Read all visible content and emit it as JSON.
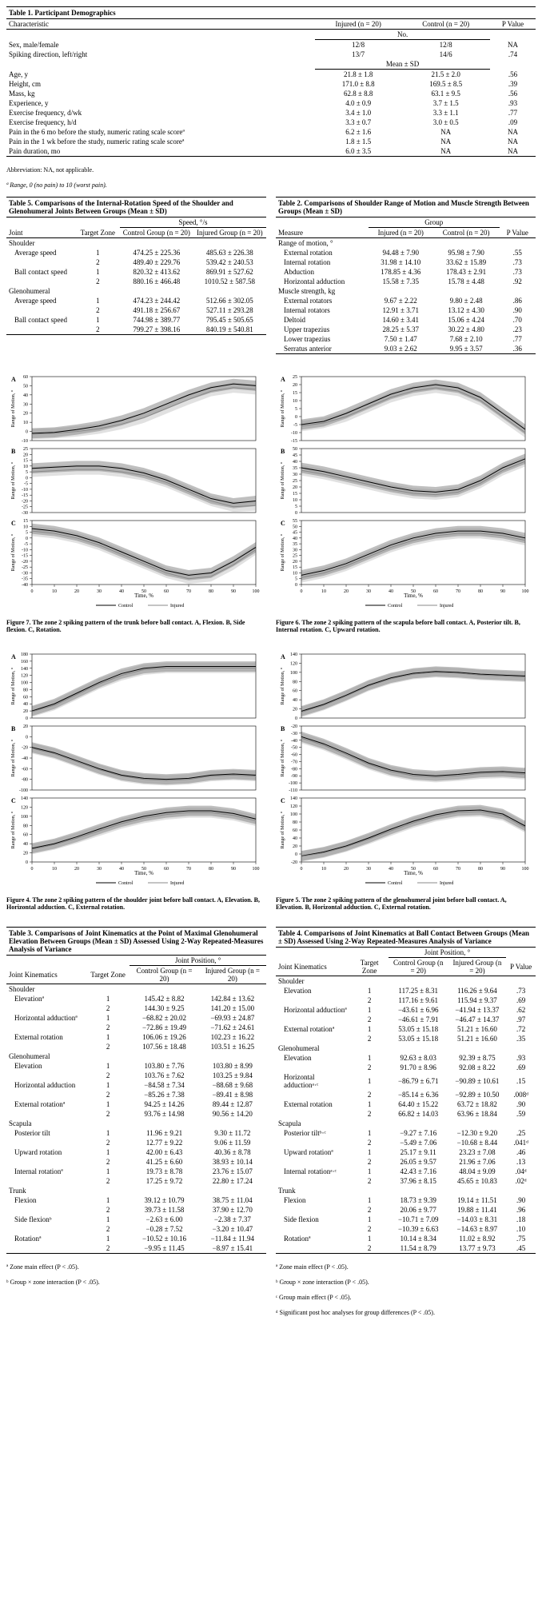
{
  "table1": {
    "title": "Table 1.   Participant Demographics",
    "cols": [
      "Characteristic",
      "Injured (n = 20)",
      "Control (n = 20)",
      "P Value"
    ],
    "sub1": "No.",
    "rows1": [
      [
        "Sex, male/female",
        "12/8",
        "12/8",
        "NA"
      ],
      [
        "Spiking direction, left/right",
        "13/7",
        "14/6",
        ".74"
      ]
    ],
    "sub2": "Mean ± SD",
    "rows2": [
      [
        "Age, y",
        "21.8 ± 1.8",
        "21.5 ± 2.0",
        ".56"
      ],
      [
        "Height, cm",
        "171.0 ± 8.8",
        "169.5 ± 8.5",
        ".39"
      ],
      [
        "Mass, kg",
        "62.8 ± 8.8",
        "63.1 ± 9.5",
        ".56"
      ],
      [
        "Experience, y",
        "4.0 ± 0.9",
        "3.7 ± 1.5",
        ".93"
      ],
      [
        "Exercise frequency, d/wk",
        "3.4 ± 1.0",
        "3.3 ± 1.1",
        ".77"
      ],
      [
        "Exercise frequency, h/d",
        "3.3 ± 0.7",
        "3.0 ± 0.5",
        ".09"
      ],
      [
        "Pain in the 6 mo before the study, numeric rating scale scoreª",
        "6.2 ± 1.6",
        "NA",
        "NA"
      ],
      [
        "Pain in the 1 wk before the study, numeric rating scale scoreª",
        "1.8 ± 1.5",
        "NA",
        "NA"
      ],
      [
        "Pain duration, mo",
        "6.0 ± 3.5",
        "NA",
        "NA"
      ]
    ],
    "abbr": "Abbreviation: NA, not applicable.",
    "foot": "ª Range, 0 (no pain) to 10 (worst pain)."
  },
  "table5": {
    "title": "Table 5.   Comparisons of the Internal-Rotation Speed of the Shoulder and Glenohumeral Joints Between Groups (Mean ± SD)",
    "spanhdr": "Speed, °/s",
    "cols": [
      "Joint",
      "Target Zone",
      "Control Group (n = 20)",
      "Injured Group (n = 20)"
    ],
    "sections": [
      {
        "name": "Shoulder",
        "rows": [
          [
            "Average speed",
            "1",
            "474.25 ± 225.36",
            "485.63 ± 226.38"
          ],
          [
            "",
            "2",
            "489.40 ± 229.76",
            "539.42 ± 240.53"
          ],
          [
            "Ball contact speed",
            "1",
            "820.32 ± 413.62",
            "869.91 ± 527.62"
          ],
          [
            "",
            "2",
            "880.16 ± 466.48",
            "1010.52 ± 587.58"
          ]
        ]
      },
      {
        "name": "Glenohumeral",
        "rows": [
          [
            "Average speed",
            "1",
            "474.23 ± 244.42",
            "512.66 ± 302.05"
          ],
          [
            "",
            "2",
            "491.18 ± 256.67",
            "527.11 ± 293.28"
          ],
          [
            "Ball contact speed",
            "1",
            "744.98 ± 389.77",
            "795.45 ± 505.65"
          ],
          [
            "",
            "2",
            "799.27 ± 398.16",
            "840.19 ± 540.81"
          ]
        ]
      }
    ]
  },
  "table2": {
    "title": "Table 2.   Comparisons of Shoulder Range of Motion and Muscle Strength Between Groups (Mean ± SD)",
    "spanhdr": "Group",
    "cols": [
      "Measure",
      "Injured (n = 20)",
      "Control (n = 20)",
      "P Value"
    ],
    "sections": [
      {
        "name": "Range of motion, °",
        "rows": [
          [
            "External rotation",
            "94.48 ± 7.90",
            "95.98 ± 7.90",
            ".55"
          ],
          [
            "Internal rotation",
            "31.98 ± 14.10",
            "33.62 ± 15.89",
            ".73"
          ],
          [
            "Abduction",
            "178.85 ± 4.36",
            "178.43 ± 2.91",
            ".73"
          ],
          [
            "Horizontal adduction",
            "15.58 ± 7.35",
            "15.78 ± 4.48",
            ".92"
          ]
        ]
      },
      {
        "name": "Muscle strength, kg",
        "rows": [
          [
            "External rotators",
            "9.67 ± 2.22",
            "9.80 ± 2.48",
            ".86"
          ],
          [
            "Internal rotators",
            "12.91 ± 3.71",
            "13.12 ± 4.30",
            ".90"
          ],
          [
            "Deltoid",
            "14.60 ± 3.41",
            "15.06 ± 4.24",
            ".70"
          ],
          [
            "Upper trapezius",
            "28.25 ± 5.37",
            "30.22 ± 4.80",
            ".23"
          ],
          [
            "Lower trapezius",
            "7.50 ± 1.47",
            "7.68 ± 2.10",
            ".77"
          ],
          [
            "Serratus anterior",
            "9.03 ± 2.62",
            "9.95 ± 3.57",
            ".36"
          ]
        ]
      }
    ]
  },
  "fig7": {
    "caption": "Figure 7.   The zone 2 spiking pattern of the trunk before ball contact. A, Flexion. B, Side flexion. C, Rotation.",
    "xlabel": "Time, %",
    "ylabel": "Range of Motion, °",
    "panels": [
      {
        "tag": "A",
        "ymin": -10,
        "ymax": 60,
        "ystep": 10,
        "control": [
          -2,
          -1,
          2,
          6,
          12,
          20,
          30,
          40,
          48,
          52,
          50
        ],
        "injured": [
          -3,
          -2,
          0,
          3,
          8,
          15,
          25,
          35,
          44,
          48,
          46
        ]
      },
      {
        "tag": "B",
        "ymin": -30,
        "ymax": 25,
        "ystep": 5,
        "control": [
          8,
          9,
          10,
          10,
          8,
          4,
          -2,
          -10,
          -18,
          -22,
          -20
        ],
        "injured": [
          5,
          6,
          7,
          7,
          5,
          2,
          -4,
          -12,
          -20,
          -25,
          -24
        ]
      },
      {
        "tag": "C",
        "ymin": -40,
        "ymax": 15,
        "ystep": 5,
        "control": [
          8,
          6,
          2,
          -4,
          -12,
          -20,
          -28,
          -32,
          -30,
          -20,
          -8
        ],
        "injured": [
          6,
          4,
          0,
          -6,
          -14,
          -22,
          -30,
          -35,
          -33,
          -23,
          -10
        ]
      }
    ]
  },
  "fig6": {
    "caption": "Figure 6.   The zone 2 spiking pattern of the scapula before ball contact. A, Posterior tilt. B, Internal rotation. C, Upward rotation.",
    "xlabel": "Time, %",
    "ylabel": "Range of Motion, °",
    "panels": [
      {
        "tag": "A",
        "ymin": -15,
        "ymax": 25,
        "ystep": 5,
        "control": [
          -5,
          -3,
          2,
          8,
          14,
          18,
          20,
          18,
          12,
          2,
          -8
        ],
        "injured": [
          -6,
          -4,
          0,
          6,
          12,
          16,
          18,
          16,
          10,
          0,
          -10
        ]
      },
      {
        "tag": "B",
        "ymin": 0,
        "ymax": 50,
        "ystep": 5,
        "control": [
          35,
          32,
          28,
          24,
          20,
          17,
          16,
          18,
          25,
          35,
          42
        ],
        "injured": [
          33,
          30,
          26,
          22,
          18,
          15,
          14,
          16,
          23,
          33,
          40
        ]
      },
      {
        "tag": "C",
        "ymin": 0,
        "ymax": 55,
        "ystep": 5,
        "control": [
          8,
          12,
          18,
          26,
          34,
          40,
          44,
          46,
          46,
          44,
          40
        ],
        "injured": [
          6,
          10,
          16,
          24,
          32,
          38,
          42,
          44,
          44,
          42,
          38
        ]
      }
    ]
  },
  "fig4": {
    "caption": "Figure 4.   The zone 2 spiking pattern of the shoulder joint before ball contact. A, Elevation. B, Horizontal adduction. C, External rotation.",
    "xlabel": "Time, %",
    "ylabel": "Range of Motion, °",
    "panels": [
      {
        "tag": "A",
        "ymin": 0,
        "ymax": 180,
        "ystep": 20,
        "control": [
          20,
          40,
          70,
          100,
          125,
          140,
          145,
          145,
          145,
          145,
          145
        ],
        "injured": [
          18,
          36,
          66,
          96,
          120,
          136,
          141,
          141,
          141,
          141,
          141
        ]
      },
      {
        "tag": "B",
        "ymin": -100,
        "ymax": 20,
        "ystep": 20,
        "control": [
          -20,
          -30,
          -45,
          -60,
          -72,
          -78,
          -80,
          -78,
          -72,
          -70,
          -72
        ],
        "injured": [
          -22,
          -32,
          -47,
          -62,
          -74,
          -80,
          -82,
          -80,
          -74,
          -72,
          -74
        ]
      },
      {
        "tag": "C",
        "ymin": 0,
        "ymax": 140,
        "ystep": 20,
        "control": [
          30,
          40,
          55,
          72,
          88,
          100,
          108,
          112,
          112,
          106,
          94
        ],
        "injured": [
          28,
          38,
          52,
          68,
          84,
          96,
          104,
          108,
          108,
          102,
          90
        ]
      }
    ]
  },
  "fig5": {
    "caption": "Figure 5.   The zone 2 spiking pattern of the glenohumeral joint before ball contact. A, Elevation. B, Horizontal adduction. C, External rotation.",
    "xlabel": "Time, %",
    "ylabel": "Range of Motion, °",
    "panels": [
      {
        "tag": "A",
        "ymin": 0,
        "ymax": 140,
        "ystep": 20,
        "control": [
          15,
          30,
          50,
          72,
          88,
          98,
          102,
          100,
          96,
          94,
          92
        ],
        "injured": [
          13,
          28,
          48,
          70,
          86,
          96,
          100,
          98,
          94,
          92,
          90
        ]
      },
      {
        "tag": "B",
        "ymin": -110,
        "ymax": -20,
        "ystep": 10,
        "control": [
          -35,
          -45,
          -58,
          -72,
          -82,
          -88,
          -90,
          -88,
          -85,
          -84,
          -86
        ],
        "injured": [
          -37,
          -47,
          -60,
          -74,
          -84,
          -90,
          -92,
          -90,
          -87,
          -86,
          -88
        ]
      },
      {
        "tag": "C",
        "ymin": -20,
        "ymax": 140,
        "ystep": 20,
        "control": [
          -5,
          5,
          20,
          40,
          62,
          82,
          98,
          108,
          110,
          100,
          70
        ],
        "injured": [
          -6,
          3,
          18,
          37,
          58,
          78,
          94,
          104,
          106,
          96,
          66
        ]
      }
    ]
  },
  "table3": {
    "title": "Table 3.   Comparisons of Joint Kinematics at the Point of Maximal Glenohumeral Elevation Between Groups (Mean ± SD) Assessed Using 2-Way Repeated-Measures Analysis of Variance",
    "spanhdr": "Joint Position, °",
    "cols": [
      "Joint Kinematics",
      "Target Zone",
      "Control Group (n = 20)",
      "Injured Group (n = 20)"
    ],
    "sections": [
      {
        "name": "Shoulder",
        "rows": [
          [
            "Elevationª",
            "1",
            "145.42 ± 8.82",
            "142.84 ± 13.62"
          ],
          [
            "",
            "2",
            "144.30 ± 9.25",
            "141.20 ± 15.00"
          ],
          [
            "Horizontal adductionª",
            "1",
            "−68.82 ± 20.02",
            "−69.93 ± 24.87"
          ],
          [
            "",
            "2",
            "−72.86 ± 19.49",
            "−71.62 ± 24.61"
          ],
          [
            "External rotation",
            "1",
            "106.06 ± 19.26",
            "102.23 ± 16.22"
          ],
          [
            "",
            "2",
            "107.56 ± 18.48",
            "103.51 ± 16.25"
          ]
        ]
      },
      {
        "name": "Glenohumeral",
        "rows": [
          [
            "Elevation",
            "1",
            "103.80 ± 7.76",
            "103.80 ± 8.99"
          ],
          [
            "",
            "2",
            "103.76 ± 7.62",
            "103.25 ± 9.84"
          ],
          [
            "Horizontal adduction",
            "1",
            "−84.58 ± 7.34",
            "−88.68 ± 9.68"
          ],
          [
            "",
            "2",
            "−85.26 ± 7.38",
            "−89.41 ± 8.98"
          ],
          [
            "External rotationª",
            "1",
            "94.25 ± 14.26",
            "89.44 ± 12.87"
          ],
          [
            "",
            "2",
            "93.76 ± 14.98",
            "90.56 ± 14.20"
          ]
        ]
      },
      {
        "name": "Scapula",
        "rows": [
          [
            "Posterior tilt",
            "1",
            "11.96 ± 9.21",
            "9.30 ± 11.72"
          ],
          [
            "",
            "2",
            "12.77 ± 9.22",
            "9.06 ± 11.59"
          ],
          [
            "Upward rotation",
            "1",
            "42.00 ± 6.43",
            "40.36 ± 8.78"
          ],
          [
            "",
            "2",
            "41.25 ± 6.60",
            "38.93 ± 10.14"
          ],
          [
            "Internal rotationª",
            "1",
            "19.73 ± 8.78",
            "23.76 ± 15.07"
          ],
          [
            "",
            "2",
            "17.25 ± 9.72",
            "22.80 ± 17.24"
          ]
        ]
      },
      {
        "name": "Trunk",
        "rows": [
          [
            "Flexion",
            "1",
            "39.12 ± 10.79",
            "38.75 ± 11.04"
          ],
          [
            "",
            "2",
            "39.73 ± 11.58",
            "37.90 ± 12.70"
          ],
          [
            "Side flexionᵇ",
            "1",
            "−2.63 ± 6.00",
            "−2.38 ± 7.37"
          ],
          [
            "",
            "2",
            "−0.28 ± 7.52",
            "−3.20 ± 10.47"
          ],
          [
            "Rotationª",
            "1",
            "−10.52 ± 10.16",
            "−11.84 ± 11.94"
          ],
          [
            "",
            "2",
            "−9.95 ± 11.45",
            "−8.97 ± 15.41"
          ]
        ]
      }
    ],
    "foots": [
      "ª Zone main effect (P < .05).",
      "ᵇ Group × zone interaction (P < .05)."
    ]
  },
  "table4": {
    "title": "Table 4.   Comparisons of Joint Kinematics at Ball Contact Between Groups (Mean ± SD) Assessed Using 2-Way Repeated-Measures Analysis of Variance",
    "spanhdr": "Joint Position, °",
    "cols": [
      "Joint Kinematics",
      "Target Zone",
      "Control Group (n = 20)",
      "Injured Group (n = 20)",
      "P Value"
    ],
    "sections": [
      {
        "name": "Shoulder",
        "rows": [
          [
            "Elevation",
            "1",
            "117.25 ± 8.31",
            "116.26 ± 9.64",
            ".73"
          ],
          [
            "",
            "2",
            "117.16 ± 9.61",
            "115.94 ± 9.37",
            ".69"
          ],
          [
            "Horizontal adductionª",
            "1",
            "−43.61 ± 6.96",
            "−41.94 ± 13.37",
            ".62"
          ],
          [
            "",
            "2",
            "−46.61 ± 7.91",
            "−46.47 ± 14.37",
            ".97"
          ],
          [
            "External rotationª",
            "1",
            "53.05 ± 15.18",
            "51.21 ± 16.60",
            ".72"
          ],
          [
            "",
            "2",
            "53.05 ± 15.18",
            "51.21 ± 16.60",
            ".35"
          ]
        ]
      },
      {
        "name": "Glenohumeral",
        "rows": [
          [
            "Elevation",
            "1",
            "92.63 ± 8.03",
            "92.39 ± 8.75",
            ".93"
          ],
          [
            "",
            "2",
            "91.70 ± 8.96",
            "92.08 ± 8.22",
            ".69"
          ],
          [
            "Horizontal adductionᵃ·ᶜ",
            "1",
            "−86.79 ± 6.71",
            "−90.89 ± 10.61",
            ".15"
          ],
          [
            "",
            "2",
            "−85.14 ± 6.36",
            "−92.89 ± 10.50",
            ".008ᵈ"
          ],
          [
            "External rotation",
            "1",
            "64.40 ± 15.22",
            "63.72 ± 18.82",
            ".90"
          ],
          [
            "",
            "2",
            "66.82 ± 14.03",
            "63.96 ± 18.84",
            ".59"
          ]
        ]
      },
      {
        "name": "Scapula",
        "rows": [
          [
            "Posterior tiltᵇ·ᶜ",
            "1",
            "−9.27 ± 7.16",
            "−12.30 ± 9.20",
            ".25"
          ],
          [
            "",
            "2",
            "−5.49 ± 7.06",
            "−10.68 ± 8.44",
            ".041ᵈ"
          ],
          [
            "Upward rotationª",
            "1",
            "25.17 ± 9.11",
            "23.23 ± 7.08",
            ".46"
          ],
          [
            "",
            "2",
            "26.05 ± 9.57",
            "21.96 ± 7.06",
            ".13"
          ],
          [
            "Internal rotationᵃ·ᶜ",
            "1",
            "42.43 ± 7.16",
            "48.04 ± 9.09",
            ".04ᵈ"
          ],
          [
            "",
            "2",
            "37.96 ± 8.15",
            "45.65 ± 10.83",
            ".02ᵈ"
          ]
        ]
      },
      {
        "name": "Trunk",
        "rows": [
          [
            "Flexion",
            "1",
            "18.73 ± 9.39",
            "19.14 ± 11.51",
            ".90"
          ],
          [
            "",
            "2",
            "20.06 ± 9.77",
            "19.88 ± 11.41",
            ".96"
          ],
          [
            "Side flexion",
            "1",
            "−10.71 ± 7.09",
            "−14.03 ± 8.31",
            ".18"
          ],
          [
            "",
            "2",
            "−10.39 ± 6.63",
            "−14.63 ± 8.97",
            ".10"
          ],
          [
            "Rotationª",
            "1",
            "10.14 ± 8.34",
            "11.02 ± 8.92",
            ".75"
          ],
          [
            "",
            "2",
            "11.54 ± 8.79",
            "13.77 ± 9.73",
            ".45"
          ]
        ]
      }
    ],
    "foots": [
      "ª Zone main effect (P < .05).",
      "ᵇ Group × zone interaction (P < .05).",
      "ᶜ Group main effect (P < .05).",
      "ᵈ Significant post hoc analyses for group differences (P < .05)."
    ]
  },
  "chart_style": {
    "control_color": "#000000",
    "injured_color": "#888888",
    "band_opacity": 0.25,
    "xticks": [
      0,
      10,
      20,
      30,
      40,
      50,
      60,
      70,
      80,
      90,
      100
    ],
    "legend": [
      "Control",
      "Injured"
    ]
  }
}
